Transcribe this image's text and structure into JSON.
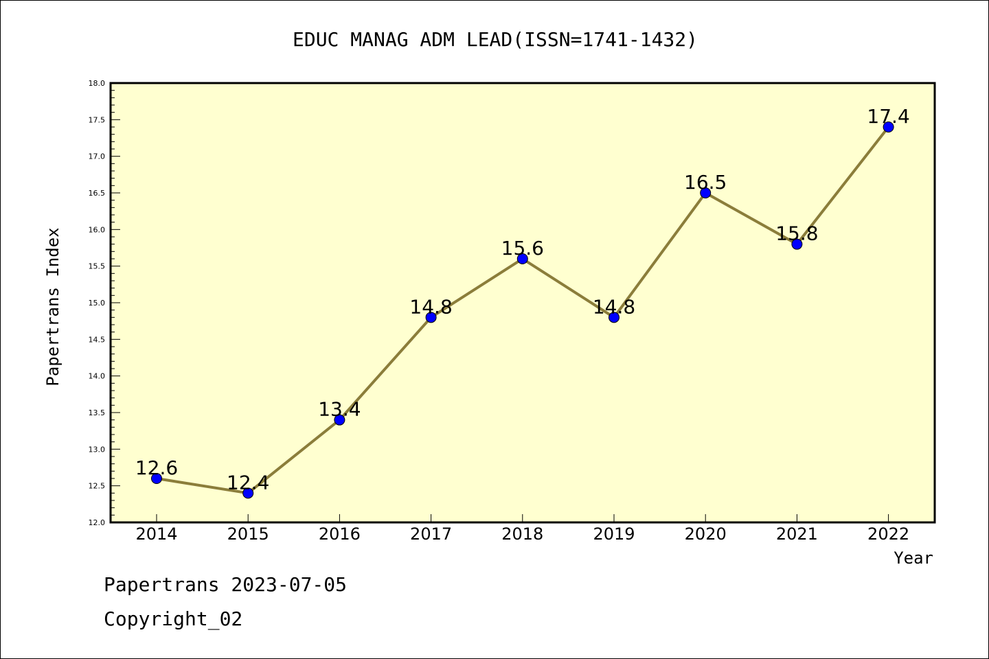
{
  "chart_data": {
    "type": "line",
    "title": "EDUC MANAG ADM LEAD(ISSN=1741-1432)",
    "xlabel": "Year",
    "ylabel": "Papertrans Index",
    "categories": [
      "2014",
      "2015",
      "2016",
      "2017",
      "2018",
      "2019",
      "2020",
      "2021",
      "2022"
    ],
    "values": [
      12.6,
      12.4,
      13.4,
      14.8,
      15.6,
      14.8,
      16.5,
      15.8,
      17.4
    ],
    "data_labels": [
      "12.6",
      "12.4",
      "13.4",
      "14.8",
      "15.6",
      "14.8",
      "16.5",
      "15.8",
      "17.4"
    ],
    "ylim": [
      12.0,
      18.0
    ],
    "yticks": [
      "12.0",
      "12.5",
      "13.0",
      "13.5",
      "14.0",
      "14.5",
      "15.0",
      "15.5",
      "16.0",
      "16.5",
      "17.0",
      "17.5",
      "18.0"
    ],
    "grid": false,
    "colors": {
      "line": "#8B7D3A",
      "marker": "#0000FF",
      "plot_background": "#FFFFD0"
    }
  },
  "footer": {
    "line1": "Papertrans 2023-07-05",
    "line2": "Copyright_02"
  }
}
